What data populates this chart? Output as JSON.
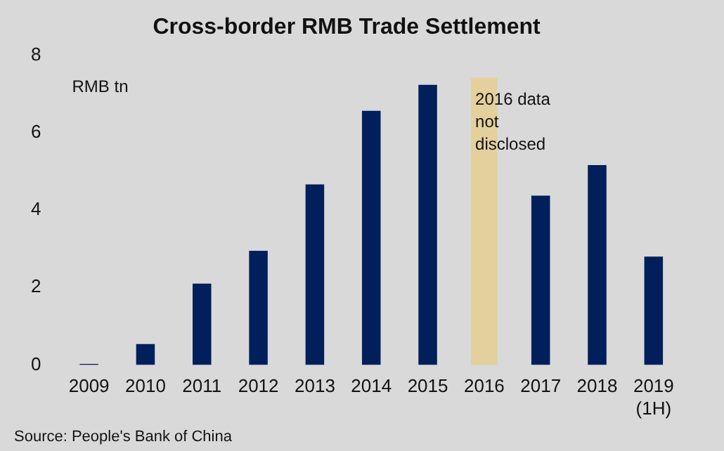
{
  "chart_data": {
    "type": "bar",
    "title": "Cross-border RMB Trade Settlement",
    "ylabel": "RMB tn",
    "categories": [
      "2009",
      "2010",
      "2011",
      "2012",
      "2013",
      "2014",
      "2015",
      "2016",
      "2017",
      "2018",
      "2019 (1H)"
    ],
    "series": [
      {
        "color": "#001f5b",
        "values": [
          0.03,
          0.54,
          2.1,
          2.95,
          4.66,
          6.56,
          7.23,
          null,
          4.37,
          5.16,
          2.8
        ]
      }
    ],
    "ylim": [
      0,
      8
    ],
    "yticks": [
      0,
      2,
      4,
      6,
      8
    ],
    "grid": false,
    "legend": false,
    "bands": [
      {
        "axis": "x",
        "from": "2016",
        "to": "2016",
        "label": "2016 data not disclosed",
        "color": "#e4d09c"
      }
    ],
    "annotations": [
      "Source: People's Bank of China"
    ]
  }
}
